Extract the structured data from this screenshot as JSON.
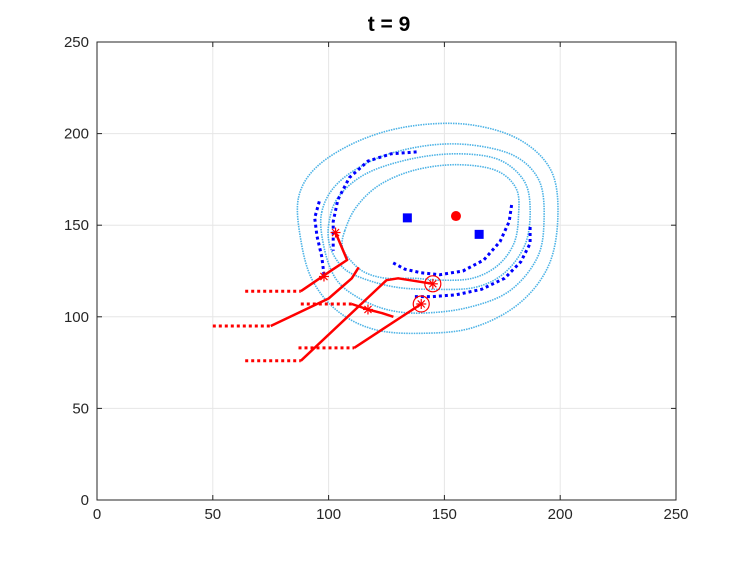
{
  "chart_data": {
    "type": "scatter",
    "title": "t = 9",
    "xlabel": "",
    "ylabel": "",
    "xlim": [
      0,
      250
    ],
    "ylim": [
      0,
      250
    ],
    "x_ticks": [
      "0",
      "50",
      "100",
      "150",
      "200",
      "250"
    ],
    "y_ticks": [
      "0",
      "50",
      "100",
      "150",
      "200",
      "250"
    ],
    "grid": true,
    "colors": {
      "contour": "#4db3e6",
      "blue_path": "#0000ff",
      "red": "#ff0000",
      "axis": "#262626",
      "grid": "#e6e6e6"
    },
    "series": [
      {
        "kind": "contour",
        "style": "dotted",
        "points": [
          [
            107,
            147
          ],
          [
            112,
            160
          ],
          [
            122,
            172
          ],
          [
            137,
            180
          ],
          [
            155,
            183
          ],
          [
            172,
            180
          ],
          [
            181,
            170
          ],
          [
            182,
            155
          ],
          [
            180,
            140
          ],
          [
            173,
            128
          ],
          [
            162,
            121
          ],
          [
            148,
            120
          ],
          [
            137,
            121
          ],
          [
            125,
            121
          ],
          [
            116,
            124
          ],
          [
            110,
            130
          ],
          [
            106,
            138
          ]
        ]
      },
      {
        "kind": "contour",
        "style": "dotted",
        "points": [
          [
            100,
            150
          ],
          [
            104,
            165
          ],
          [
            116,
            178
          ],
          [
            135,
            186
          ],
          [
            155,
            189
          ],
          [
            173,
            186
          ],
          [
            184,
            175
          ],
          [
            187,
            160
          ],
          [
            185,
            140
          ],
          [
            176,
            124
          ],
          [
            163,
            116
          ],
          [
            145,
            115
          ],
          [
            130,
            116
          ],
          [
            117,
            120
          ],
          [
            107,
            126
          ],
          [
            101,
            137
          ]
        ]
      },
      {
        "kind": "contour",
        "style": "dotted",
        "points": [
          [
            97,
            157
          ],
          [
            104,
            173
          ],
          [
            120,
            186
          ],
          [
            140,
            193
          ],
          [
            160,
            194
          ],
          [
            180,
            188
          ],
          [
            191,
            174
          ],
          [
            193,
            152
          ],
          [
            190,
            132
          ],
          [
            178,
            114
          ],
          [
            160,
            105
          ],
          [
            140,
            102
          ],
          [
            125,
            104
          ],
          [
            112,
            111
          ],
          [
            103,
            121
          ],
          [
            98,
            138
          ]
        ]
      },
      {
        "kind": "contour",
        "style": "dotted",
        "points": [
          [
            87,
            165
          ],
          [
            95,
            182
          ],
          [
            113,
            196
          ],
          [
            135,
            204
          ],
          [
            160,
            205
          ],
          [
            182,
            197
          ],
          [
            196,
            180
          ],
          [
            199,
            155
          ],
          [
            195,
            128
          ],
          [
            182,
            107
          ],
          [
            162,
            94
          ],
          [
            140,
            91
          ],
          [
            120,
            93
          ],
          [
            104,
            103
          ],
          [
            93,
            120
          ],
          [
            88,
            142
          ]
        ]
      },
      {
        "kind": "blue_path",
        "style": "dotted",
        "points": [
          [
            96,
            163
          ],
          [
            94,
            154
          ],
          [
            95,
            144
          ],
          [
            97,
            133
          ],
          [
            98,
            123
          ]
        ]
      },
      {
        "kind": "blue_path",
        "style": "dotted",
        "points": [
          [
            138,
            190
          ],
          [
            127,
            189
          ],
          [
            117,
            185
          ],
          [
            109,
            176
          ],
          [
            104,
            164
          ],
          [
            102,
            152
          ],
          [
            102,
            140
          ],
          [
            102,
            136
          ]
        ]
      },
      {
        "kind": "blue_path",
        "style": "dotted",
        "points": [
          [
            179,
            161
          ],
          [
            178,
            152
          ],
          [
            174,
            141
          ],
          [
            167,
            131
          ],
          [
            158,
            125
          ],
          [
            148,
            123
          ],
          [
            140,
            124
          ],
          [
            133,
            126
          ],
          [
            127,
            130
          ]
        ]
      },
      {
        "kind": "blue_path",
        "style": "dotted",
        "points": [
          [
            187,
            149
          ],
          [
            187,
            140
          ],
          [
            183,
            130
          ],
          [
            176,
            121
          ],
          [
            166,
            115
          ],
          [
            155,
            112
          ],
          [
            145,
            111
          ],
          [
            136,
            111
          ]
        ]
      },
      {
        "kind": "red_path",
        "style": "solid",
        "points": [
          [
            88,
            114
          ],
          [
            102,
            126
          ],
          [
            108,
            131
          ],
          [
            103,
            146
          ]
        ]
      },
      {
        "kind": "red_path",
        "style": "solid",
        "points": [
          [
            75,
            95
          ],
          [
            100,
            110
          ],
          [
            110,
            121
          ],
          [
            113,
            127
          ]
        ]
      },
      {
        "kind": "red_path",
        "style": "solid",
        "points": [
          [
            88,
            76
          ],
          [
            125,
            120
          ],
          [
            130,
            121
          ],
          [
            145,
            118
          ]
        ]
      },
      {
        "kind": "red_path",
        "style": "solid",
        "points": [
          [
            110,
            107
          ],
          [
            117,
            104
          ],
          [
            123,
            102
          ],
          [
            128,
            100
          ]
        ]
      },
      {
        "kind": "red_path",
        "style": "solid",
        "points": [
          [
            111,
            83
          ],
          [
            140,
            107
          ]
        ]
      },
      {
        "kind": "red_history",
        "style": "dotted",
        "points": [
          [
            64,
            114
          ],
          [
            88,
            114
          ]
        ]
      },
      {
        "kind": "red_history",
        "style": "dotted",
        "points": [
          [
            50,
            95
          ],
          [
            75,
            95
          ]
        ]
      },
      {
        "kind": "red_history",
        "style": "dotted",
        "points": [
          [
            64,
            76
          ],
          [
            88,
            76
          ]
        ]
      },
      {
        "kind": "red_history",
        "style": "dotted",
        "points": [
          [
            88,
            107
          ],
          [
            110,
            107
          ]
        ]
      },
      {
        "kind": "red_history",
        "style": "dotted",
        "points": [
          [
            87,
            83
          ],
          [
            111,
            83
          ]
        ]
      }
    ],
    "markers": [
      {
        "kind": "blue-square",
        "x": 134,
        "y": 154
      },
      {
        "kind": "blue-square",
        "x": 165,
        "y": 145
      },
      {
        "kind": "red-dot",
        "x": 155,
        "y": 155
      },
      {
        "kind": "red-star",
        "x": 103,
        "y": 146
      },
      {
        "kind": "red-star",
        "x": 98,
        "y": 122
      },
      {
        "kind": "red-star",
        "x": 117,
        "y": 104
      },
      {
        "kind": "red-star-circled",
        "x": 145,
        "y": 118
      },
      {
        "kind": "red-star-circled",
        "x": 140,
        "y": 107
      }
    ]
  }
}
